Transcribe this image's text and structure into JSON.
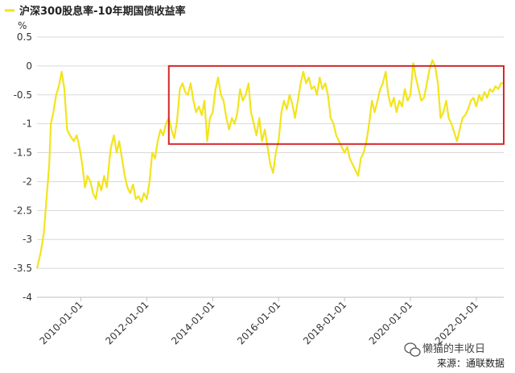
{
  "legend": {
    "label": "沪深300股息率-10年期国债收益率",
    "color": "#f2e41c"
  },
  "watermark": "懒猫的丰收日",
  "source": "来源：通联数据",
  "chart_data": {
    "type": "line",
    "title": "",
    "unit": "%",
    "ylim": [
      -4,
      0.5
    ],
    "yticks": [
      {
        "value": 0.5,
        "label": "0.5"
      },
      {
        "value": 0,
        "label": "0"
      },
      {
        "value": -0.5,
        "label": "-0.5"
      },
      {
        "value": -1,
        "label": "-1"
      },
      {
        "value": -1.5,
        "label": "-1.5"
      },
      {
        "value": -2,
        "label": "-2"
      },
      {
        "value": -2.5,
        "label": "-2.5"
      },
      {
        "value": -3,
        "label": "-3"
      },
      {
        "value": -3.5,
        "label": "-3.5"
      },
      {
        "value": -4,
        "label": "-4"
      }
    ],
    "xlim": [
      "2008-09-01",
      "2022-11-01"
    ],
    "xticks": [
      {
        "value": "2010-01-01",
        "label": "2010-01-01"
      },
      {
        "value": "2012-01-01",
        "label": "2012-01-01"
      },
      {
        "value": "2014-01-01",
        "label": "2014-01-01"
      },
      {
        "value": "2016-01-01",
        "label": "2016-01-01"
      },
      {
        "value": "2018-01-01",
        "label": "2018-01-01"
      },
      {
        "value": "2020-01-01",
        "label": "2020-01-01"
      },
      {
        "value": "2022-01-01",
        "label": "2022-01-01"
      }
    ],
    "grid": "horizontal",
    "legend_position": "top-left",
    "highlight_box": {
      "x": [
        "2012-09-01",
        "2022-11-01"
      ],
      "y": [
        -1.35,
        0.0
      ],
      "color": "#d62728"
    },
    "series": [
      {
        "name": "沪深300股息率-10年期国债收益率",
        "color": "#f2e41c",
        "points": [
          [
            "2008-09-01",
            -3.5
          ],
          [
            "2008-10-15",
            -3.2
          ],
          [
            "2008-11-15",
            -2.9
          ],
          [
            "2008-12-15",
            -2.3
          ],
          [
            "2009-01-15",
            -1.7
          ],
          [
            "2009-02-01",
            -1.0
          ],
          [
            "2009-03-01",
            -0.8
          ],
          [
            "2009-04-01",
            -0.5
          ],
          [
            "2009-05-01",
            -0.35
          ],
          [
            "2009-06-01",
            -0.1
          ],
          [
            "2009-07-01",
            -0.4
          ],
          [
            "2009-08-01",
            -1.1
          ],
          [
            "2009-09-01",
            -1.2
          ],
          [
            "2009-10-15",
            -1.3
          ],
          [
            "2009-11-15",
            -1.2
          ],
          [
            "2009-12-15",
            -1.4
          ],
          [
            "2010-01-15",
            -1.7
          ],
          [
            "2010-02-15",
            -2.1
          ],
          [
            "2010-03-15",
            -1.9
          ],
          [
            "2010-04-15",
            -2.0
          ],
          [
            "2010-05-15",
            -2.2
          ],
          [
            "2010-06-15",
            -2.3
          ],
          [
            "2010-07-15",
            -2.0
          ],
          [
            "2010-08-15",
            -2.15
          ],
          [
            "2010-09-15",
            -1.9
          ],
          [
            "2010-10-15",
            -2.1
          ],
          [
            "2010-11-15",
            -1.6
          ],
          [
            "2010-12-01",
            -1.4
          ],
          [
            "2011-01-01",
            -1.2
          ],
          [
            "2011-02-01",
            -1.5
          ],
          [
            "2011-03-01",
            -1.3
          ],
          [
            "2011-04-01",
            -1.6
          ],
          [
            "2011-05-01",
            -1.9
          ],
          [
            "2011-06-01",
            -2.1
          ],
          [
            "2011-07-01",
            -2.2
          ],
          [
            "2011-08-01",
            -2.05
          ],
          [
            "2011-09-01",
            -2.3
          ],
          [
            "2011-10-01",
            -2.25
          ],
          [
            "2011-11-01",
            -2.35
          ],
          [
            "2011-12-01",
            -2.2
          ],
          [
            "2012-01-01",
            -2.3
          ],
          [
            "2012-02-01",
            -2.0
          ],
          [
            "2012-03-01",
            -1.5
          ],
          [
            "2012-04-01",
            -1.6
          ],
          [
            "2012-05-01",
            -1.3
          ],
          [
            "2012-06-01",
            -1.1
          ],
          [
            "2012-07-01",
            -1.2
          ],
          [
            "2012-08-01",
            -1.0
          ],
          [
            "2012-09-01",
            -0.9
          ],
          [
            "2012-10-01",
            -1.1
          ],
          [
            "2012-11-01",
            -1.25
          ],
          [
            "2012-12-01",
            -0.95
          ],
          [
            "2013-01-01",
            -0.4
          ],
          [
            "2013-02-01",
            -0.3
          ],
          [
            "2013-03-01",
            -0.45
          ],
          [
            "2013-04-01",
            -0.5
          ],
          [
            "2013-05-01",
            -0.3
          ],
          [
            "2013-06-01",
            -0.6
          ],
          [
            "2013-07-01",
            -0.8
          ],
          [
            "2013-08-01",
            -0.7
          ],
          [
            "2013-09-01",
            -0.85
          ],
          [
            "2013-10-01",
            -0.6
          ],
          [
            "2013-11-01",
            -1.3
          ],
          [
            "2013-12-01",
            -0.9
          ],
          [
            "2014-01-01",
            -0.8
          ],
          [
            "2014-02-01",
            -0.4
          ],
          [
            "2014-03-01",
            -0.2
          ],
          [
            "2014-04-01",
            -0.5
          ],
          [
            "2014-05-01",
            -0.6
          ],
          [
            "2014-06-01",
            -0.9
          ],
          [
            "2014-07-01",
            -1.1
          ],
          [
            "2014-08-01",
            -0.9
          ],
          [
            "2014-09-01",
            -1.0
          ],
          [
            "2014-10-01",
            -0.8
          ],
          [
            "2014-11-01",
            -0.4
          ],
          [
            "2014-12-01",
            -0.6
          ],
          [
            "2015-01-01",
            -0.5
          ],
          [
            "2015-02-01",
            -0.3
          ],
          [
            "2015-03-01",
            -0.8
          ],
          [
            "2015-04-01",
            -1.0
          ],
          [
            "2015-05-01",
            -1.2
          ],
          [
            "2015-06-01",
            -0.9
          ],
          [
            "2015-07-01",
            -1.3
          ],
          [
            "2015-08-01",
            -1.1
          ],
          [
            "2015-09-01",
            -1.4
          ],
          [
            "2015-10-01",
            -1.7
          ],
          [
            "2015-11-01",
            -1.85
          ],
          [
            "2015-12-01",
            -1.5
          ],
          [
            "2016-01-01",
            -1.3
          ],
          [
            "2016-02-01",
            -0.8
          ],
          [
            "2016-03-01",
            -0.6
          ],
          [
            "2016-04-01",
            -0.75
          ],
          [
            "2016-05-01",
            -0.5
          ],
          [
            "2016-06-01",
            -0.65
          ],
          [
            "2016-07-01",
            -0.9
          ],
          [
            "2016-08-01",
            -0.6
          ],
          [
            "2016-09-01",
            -0.3
          ],
          [
            "2016-10-01",
            -0.1
          ],
          [
            "2016-11-01",
            -0.3
          ],
          [
            "2016-12-01",
            -0.2
          ],
          [
            "2017-01-01",
            -0.4
          ],
          [
            "2017-02-01",
            -0.35
          ],
          [
            "2017-03-01",
            -0.5
          ],
          [
            "2017-04-01",
            -0.2
          ],
          [
            "2017-05-01",
            -0.4
          ],
          [
            "2017-06-01",
            -0.3
          ],
          [
            "2017-07-01",
            -0.5
          ],
          [
            "2017-08-01",
            -0.9
          ],
          [
            "2017-09-01",
            -1.0
          ],
          [
            "2017-10-01",
            -1.2
          ],
          [
            "2017-11-01",
            -1.3
          ],
          [
            "2017-12-01",
            -1.4
          ],
          [
            "2018-01-01",
            -1.5
          ],
          [
            "2018-02-01",
            -1.4
          ],
          [
            "2018-03-01",
            -1.6
          ],
          [
            "2018-04-01",
            -1.7
          ],
          [
            "2018-05-01",
            -1.8
          ],
          [
            "2018-06-01",
            -1.9
          ],
          [
            "2018-07-01",
            -1.6
          ],
          [
            "2018-08-01",
            -1.5
          ],
          [
            "2018-09-01",
            -1.3
          ],
          [
            "2018-10-01",
            -1.0
          ],
          [
            "2018-11-01",
            -0.6
          ],
          [
            "2018-12-01",
            -0.8
          ],
          [
            "2019-01-01",
            -0.6
          ],
          [
            "2019-02-01",
            -0.4
          ],
          [
            "2019-03-01",
            -0.3
          ],
          [
            "2019-04-01",
            -0.1
          ],
          [
            "2019-05-01",
            -0.5
          ],
          [
            "2019-06-01",
            -0.7
          ],
          [
            "2019-07-01",
            -0.55
          ],
          [
            "2019-08-01",
            -0.8
          ],
          [
            "2019-09-01",
            -0.6
          ],
          [
            "2019-10-01",
            -0.7
          ],
          [
            "2019-11-01",
            -0.4
          ],
          [
            "2019-12-01",
            -0.6
          ],
          [
            "2020-01-01",
            -0.5
          ],
          [
            "2020-02-01",
            0.05
          ],
          [
            "2020-03-01",
            -0.2
          ],
          [
            "2020-04-01",
            -0.4
          ],
          [
            "2020-05-01",
            -0.6
          ],
          [
            "2020-06-01",
            -0.55
          ],
          [
            "2020-07-01",
            -0.3
          ],
          [
            "2020-08-01",
            -0.05
          ],
          [
            "2020-09-01",
            0.1
          ],
          [
            "2020-10-01",
            0.0
          ],
          [
            "2020-11-01",
            -0.3
          ],
          [
            "2020-12-01",
            -0.9
          ],
          [
            "2021-01-01",
            -0.8
          ],
          [
            "2021-02-01",
            -0.6
          ],
          [
            "2021-03-01",
            -0.9
          ],
          [
            "2021-04-01",
            -1.0
          ],
          [
            "2021-05-01",
            -1.15
          ],
          [
            "2021-06-01",
            -1.3
          ],
          [
            "2021-07-01",
            -1.1
          ],
          [
            "2021-08-01",
            -0.9
          ],
          [
            "2021-09-01",
            -0.85
          ],
          [
            "2021-10-01",
            -0.75
          ],
          [
            "2021-11-01",
            -0.6
          ],
          [
            "2021-12-01",
            -0.55
          ],
          [
            "2022-01-01",
            -0.7
          ],
          [
            "2022-02-01",
            -0.5
          ],
          [
            "2022-03-01",
            -0.6
          ],
          [
            "2022-04-01",
            -0.45
          ],
          [
            "2022-05-01",
            -0.55
          ],
          [
            "2022-06-01",
            -0.4
          ],
          [
            "2022-07-01",
            -0.45
          ],
          [
            "2022-08-01",
            -0.35
          ],
          [
            "2022-09-01",
            -0.4
          ],
          [
            "2022-10-01",
            -0.3
          ],
          [
            "2022-11-01",
            -0.3
          ]
        ]
      }
    ]
  }
}
